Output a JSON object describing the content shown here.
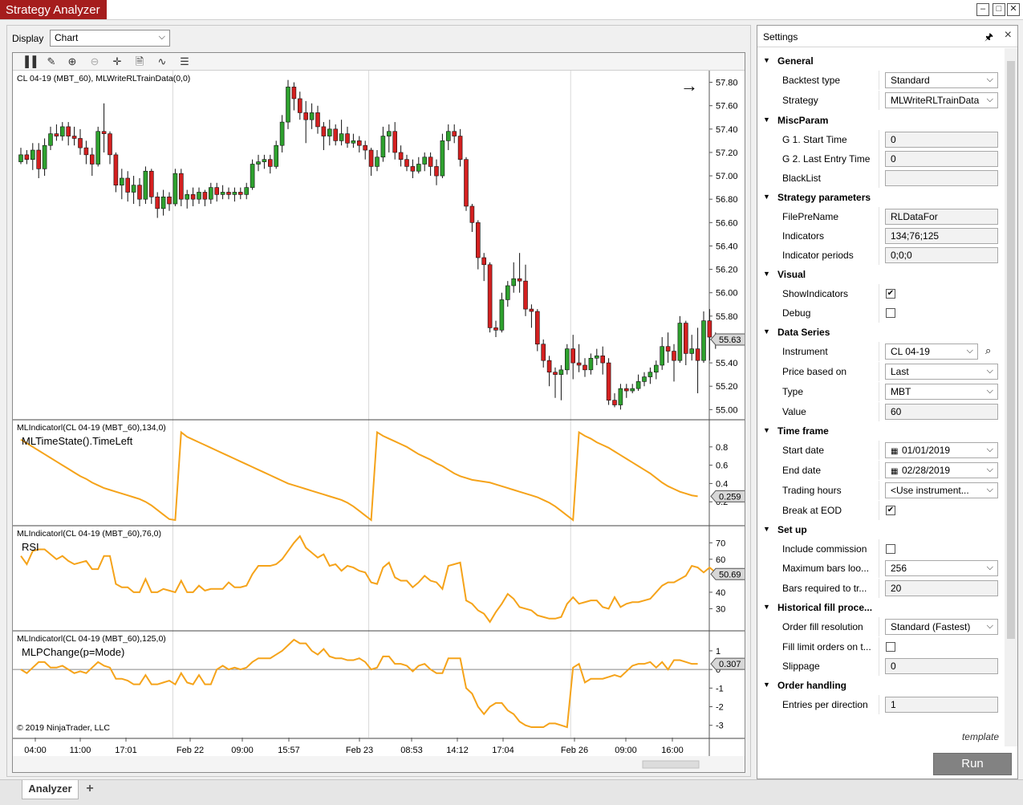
{
  "window": {
    "title": "Strategy Analyzer"
  },
  "display": {
    "label": "Display",
    "value": "Chart"
  },
  "chart": {
    "main_label": "CL 04-19 (MBT_60), MLWriteRLTrainData(0,0)",
    "price_ticks": [
      "57.80",
      "57.60",
      "57.40",
      "57.20",
      "57.00",
      "56.80",
      "56.60",
      "56.40",
      "56.20",
      "56.00",
      "55.80",
      "55.60",
      "55.40",
      "55.20",
      "55.00"
    ],
    "price_marker": "55.63",
    "up_color": "#2ea12e",
    "down_color": "#d42020",
    "indicator_color": "#f5a31a",
    "candles": [
      [
        57.12,
        57.18,
        57.1,
        57.24
      ],
      [
        57.18,
        57.14,
        57.1,
        57.22
      ],
      [
        57.14,
        57.22,
        57.05,
        57.28
      ],
      [
        57.22,
        57.06,
        56.98,
        57.28
      ],
      [
        57.06,
        57.26,
        57.0,
        57.32
      ],
      [
        57.26,
        57.36,
        57.22,
        57.42
      ],
      [
        57.36,
        57.34,
        57.3,
        57.44
      ],
      [
        57.34,
        57.42,
        57.3,
        57.46
      ],
      [
        57.42,
        57.34,
        57.26,
        57.46
      ],
      [
        57.34,
        57.32,
        57.26,
        57.42
      ],
      [
        57.32,
        57.24,
        57.18,
        57.4
      ],
      [
        57.24,
        57.18,
        57.1,
        57.3
      ],
      [
        57.18,
        57.1,
        57.0,
        57.24
      ],
      [
        57.1,
        57.38,
        57.08,
        57.42
      ],
      [
        57.38,
        57.36,
        57.2,
        57.62
      ],
      [
        57.36,
        57.18,
        57.1,
        57.38
      ],
      [
        57.18,
        56.92,
        56.86,
        57.2
      ],
      [
        56.92,
        56.98,
        56.8,
        57.06
      ],
      [
        56.98,
        56.86,
        56.78,
        57.04
      ],
      [
        56.86,
        56.92,
        56.76,
        57.0
      ],
      [
        56.92,
        56.8,
        56.74,
        56.98
      ],
      [
        56.8,
        57.04,
        56.76,
        57.08
      ],
      [
        57.04,
        56.82,
        56.76,
        57.06
      ],
      [
        56.82,
        56.72,
        56.64,
        56.86
      ],
      [
        56.72,
        56.82,
        56.66,
        56.88
      ],
      [
        56.82,
        56.76,
        56.7,
        56.86
      ],
      [
        56.76,
        57.02,
        56.74,
        57.06
      ],
      [
        57.02,
        56.8,
        56.74,
        57.06
      ],
      [
        56.8,
        56.84,
        56.72,
        56.88
      ],
      [
        56.84,
        56.8,
        56.74,
        56.9
      ],
      [
        56.8,
        56.86,
        56.76,
        56.9
      ],
      [
        56.86,
        56.8,
        56.74,
        56.88
      ],
      [
        56.8,
        56.9,
        56.76,
        56.94
      ],
      [
        56.9,
        56.84,
        56.78,
        56.94
      ],
      [
        56.84,
        56.86,
        56.8,
        56.92
      ],
      [
        56.86,
        56.84,
        56.8,
        56.9
      ],
      [
        56.84,
        56.86,
        56.78,
        56.9
      ],
      [
        56.86,
        56.84,
        56.8,
        56.9
      ],
      [
        56.84,
        56.9,
        56.8,
        56.94
      ],
      [
        56.9,
        57.1,
        56.88,
        57.14
      ],
      [
        57.1,
        57.12,
        57.04,
        57.18
      ],
      [
        57.12,
        57.14,
        57.06,
        57.18
      ],
      [
        57.14,
        57.08,
        57.02,
        57.18
      ],
      [
        57.08,
        57.26,
        57.06,
        57.3
      ],
      [
        57.26,
        57.46,
        57.2,
        57.52
      ],
      [
        57.46,
        57.76,
        57.4,
        57.82
      ],
      [
        57.76,
        57.66,
        57.56,
        57.8
      ],
      [
        57.66,
        57.54,
        57.48,
        57.72
      ],
      [
        57.54,
        57.48,
        57.28,
        57.64
      ],
      [
        57.48,
        57.54,
        57.4,
        57.62
      ],
      [
        57.54,
        57.42,
        57.36,
        57.6
      ],
      [
        57.42,
        57.34,
        57.22,
        57.46
      ],
      [
        57.34,
        57.4,
        57.26,
        57.48
      ],
      [
        57.4,
        57.3,
        57.26,
        57.44
      ],
      [
        57.3,
        57.36,
        57.26,
        57.48
      ],
      [
        57.36,
        57.28,
        57.24,
        57.42
      ],
      [
        57.28,
        57.3,
        57.24,
        57.36
      ],
      [
        57.3,
        57.26,
        57.2,
        57.34
      ],
      [
        57.26,
        57.22,
        57.14,
        57.3
      ],
      [
        57.22,
        57.08,
        57.0,
        57.24
      ],
      [
        57.08,
        57.16,
        57.04,
        57.22
      ],
      [
        57.16,
        57.34,
        57.12,
        57.42
      ],
      [
        57.34,
        57.38,
        57.2,
        57.44
      ],
      [
        57.38,
        57.2,
        57.14,
        57.46
      ],
      [
        57.2,
        57.14,
        57.08,
        57.26
      ],
      [
        57.14,
        57.08,
        57.04,
        57.18
      ],
      [
        57.08,
        57.04,
        56.98,
        57.14
      ],
      [
        57.04,
        57.1,
        57.02,
        57.16
      ],
      [
        57.1,
        57.16,
        57.04,
        57.2
      ],
      [
        57.16,
        57.08,
        57.0,
        57.2
      ],
      [
        57.08,
        57.0,
        56.92,
        57.14
      ],
      [
        57.0,
        57.3,
        56.98,
        57.36
      ],
      [
        57.3,
        57.38,
        57.22,
        57.44
      ],
      [
        57.38,
        57.34,
        57.28,
        57.44
      ],
      [
        57.34,
        57.14,
        57.08,
        57.4
      ],
      [
        57.14,
        56.74,
        56.7,
        57.16
      ],
      [
        56.74,
        56.6,
        56.52,
        56.76
      ],
      [
        56.6,
        56.3,
        56.2,
        56.62
      ],
      [
        56.3,
        56.24,
        56.1,
        56.34
      ],
      [
        56.24,
        55.7,
        55.66,
        56.26
      ],
      [
        55.7,
        55.68,
        55.62,
        55.76
      ],
      [
        55.68,
        55.94,
        55.66,
        56.0
      ],
      [
        55.94,
        56.06,
        55.88,
        56.1
      ],
      [
        56.06,
        56.12,
        56.0,
        56.26
      ],
      [
        56.12,
        56.1,
        56.0,
        56.34
      ],
      [
        56.1,
        55.86,
        55.8,
        56.24
      ],
      [
        55.86,
        55.84,
        55.7,
        55.9
      ],
      [
        55.84,
        55.56,
        55.5,
        55.86
      ],
      [
        55.56,
        55.42,
        55.36,
        55.6
      ],
      [
        55.42,
        55.32,
        55.2,
        55.46
      ],
      [
        55.32,
        55.3,
        55.1,
        55.36
      ],
      [
        55.3,
        55.34,
        55.08,
        55.38
      ],
      [
        55.34,
        55.52,
        55.3,
        55.56
      ],
      [
        55.52,
        55.4,
        55.26,
        55.64
      ],
      [
        55.4,
        55.38,
        55.32,
        55.56
      ],
      [
        55.38,
        55.34,
        55.28,
        55.44
      ],
      [
        55.34,
        55.44,
        55.3,
        55.48
      ],
      [
        55.44,
        55.46,
        55.38,
        55.52
      ],
      [
        55.46,
        55.4,
        55.3,
        55.54
      ],
      [
        55.4,
        55.08,
        55.04,
        55.44
      ],
      [
        55.08,
        55.04,
        55.02,
        55.14
      ],
      [
        55.04,
        55.18,
        55.0,
        55.22
      ],
      [
        55.18,
        55.16,
        55.1,
        55.22
      ],
      [
        55.16,
        55.18,
        55.14,
        55.22
      ],
      [
        55.18,
        55.24,
        55.16,
        55.3
      ],
      [
        55.24,
        55.28,
        55.2,
        55.32
      ],
      [
        55.28,
        55.32,
        55.22,
        55.36
      ],
      [
        55.32,
        55.38,
        55.26,
        55.42
      ],
      [
        55.38,
        55.54,
        55.34,
        55.62
      ],
      [
        55.54,
        55.5,
        55.4,
        55.66
      ],
      [
        55.5,
        55.42,
        55.24,
        55.56
      ],
      [
        55.42,
        55.74,
        55.4,
        55.8
      ],
      [
        55.74,
        55.48,
        55.38,
        55.76
      ],
      [
        55.48,
        55.52,
        55.42,
        55.64
      ],
      [
        55.52,
        55.42,
        55.14,
        55.7
      ],
      [
        55.42,
        55.76,
        55.4,
        55.84
      ],
      [
        55.76,
        55.62,
        55.42,
        55.86
      ],
      [
        55.62,
        55.6,
        55.52,
        55.66
      ]
    ],
    "panels": [
      {
        "header": "MLIndicatorl(CL 04-19 (MBT_60),134,0)",
        "name": "MLTimeState().TimeLeft",
        "ticks": [
          "0.8",
          "0.6",
          "0.4",
          "0.2"
        ],
        "marker": "0.259",
        "min": 0,
        "max": 1,
        "values": [
          0.88,
          0.84,
          0.8,
          0.76,
          0.72,
          0.68,
          0.64,
          0.6,
          0.56,
          0.52,
          0.48,
          0.45,
          0.41,
          0.38,
          0.35,
          0.33,
          0.31,
          0.29,
          0.27,
          0.25,
          0.23,
          0.2,
          0.16,
          0.11,
          0.06,
          0.01,
          0.0,
          0.96,
          0.91,
          0.88,
          0.85,
          0.82,
          0.79,
          0.76,
          0.73,
          0.7,
          0.67,
          0.64,
          0.61,
          0.58,
          0.55,
          0.52,
          0.49,
          0.46,
          0.43,
          0.4,
          0.38,
          0.36,
          0.34,
          0.32,
          0.3,
          0.28,
          0.26,
          0.24,
          0.22,
          0.19,
          0.15,
          0.1,
          0.05,
          0.0,
          0.96,
          0.92,
          0.89,
          0.86,
          0.83,
          0.8,
          0.76,
          0.72,
          0.69,
          0.66,
          0.62,
          0.59,
          0.55,
          0.51,
          0.48,
          0.46,
          0.44,
          0.43,
          0.42,
          0.41,
          0.39,
          0.37,
          0.35,
          0.33,
          0.31,
          0.29,
          0.27,
          0.25,
          0.22,
          0.19,
          0.15,
          0.1,
          0.05,
          0.0,
          0.96,
          0.92,
          0.89,
          0.85,
          0.82,
          0.79,
          0.75,
          0.71,
          0.67,
          0.63,
          0.59,
          0.55,
          0.51,
          0.46,
          0.41,
          0.37,
          0.34,
          0.31,
          0.29,
          0.27,
          0.26
        ]
      },
      {
        "header": "MLIndicatorl(CL 04-19 (MBT_60),76,0)",
        "name": "RSI",
        "ticks": [
          "70",
          "60",
          "40",
          "30"
        ],
        "marker": "50.69",
        "min": 20,
        "max": 75,
        "values": [
          62,
          57,
          65,
          66,
          66,
          63,
          60,
          62,
          59,
          57,
          58,
          59,
          54,
          54,
          62,
          62,
          45,
          43,
          43,
          40,
          40,
          48,
          40,
          40,
          42,
          41,
          40,
          47,
          40,
          40,
          44,
          41,
          42,
          42,
          42,
          46,
          43,
          43,
          44,
          51,
          56,
          56,
          56,
          57,
          60,
          65,
          70,
          74,
          67,
          64,
          61,
          63,
          56,
          57,
          53,
          56,
          55,
          53,
          52,
          46,
          45,
          55,
          58,
          49,
          47,
          47,
          43,
          46,
          50,
          47,
          46,
          42,
          56,
          57,
          58,
          35,
          33,
          29,
          27,
          22,
          28,
          33,
          39,
          36,
          31,
          30,
          29,
          26,
          25,
          24,
          24,
          25,
          33,
          37,
          33,
          34,
          35,
          35,
          31,
          30,
          37,
          31,
          33,
          34,
          34,
          35,
          36,
          40,
          44,
          46,
          46,
          48,
          50,
          56,
          55,
          52,
          55,
          52,
          51
        ]
      },
      {
        "header": "MLIndicatorl(CL 04-19 (MBT_60),125,0)",
        "name": "MLPChange(p=Mode)",
        "ticks": [
          "1",
          "0",
          "-1",
          "-2",
          "-3"
        ],
        "marker": "0.307",
        "min": -3.4,
        "max": 1.6,
        "values": [
          0.0,
          -0.2,
          0.1,
          0.4,
          0.4,
          0.1,
          0.1,
          0.2,
          0.0,
          -0.2,
          -0.1,
          -0.2,
          0.1,
          0.4,
          0.2,
          0.1,
          -0.5,
          -0.5,
          -0.6,
          -0.8,
          -0.8,
          -0.3,
          -0.8,
          -0.8,
          -0.7,
          -0.6,
          -0.8,
          -0.2,
          -0.7,
          -0.8,
          -0.3,
          -0.8,
          -0.8,
          0.0,
          0.2,
          0.0,
          0.1,
          0.0,
          0.1,
          0.4,
          0.6,
          0.6,
          0.6,
          0.8,
          1.0,
          1.3,
          1.6,
          1.4,
          1.4,
          1.0,
          0.8,
          1.1,
          0.7,
          0.6,
          0.6,
          0.5,
          0.5,
          0.6,
          0.4,
          0.0,
          0.1,
          0.7,
          0.7,
          0.3,
          0.3,
          0.2,
          -0.1,
          0.2,
          0.3,
          0.0,
          -0.2,
          -0.2,
          0.6,
          0.6,
          0.6,
          -1.0,
          -1.3,
          -2.0,
          -2.4,
          -2.0,
          -1.8,
          -1.8,
          -2.2,
          -2.4,
          -2.8,
          -3.0,
          -3.1,
          -3.1,
          -3.1,
          -2.9,
          -2.9,
          -3.0,
          -3.1,
          0.1,
          0.3,
          -0.7,
          -0.5,
          -0.5,
          -0.5,
          -0.4,
          -0.3,
          -0.4,
          -0.1,
          0.2,
          0.3,
          0.3,
          0.4,
          0.1,
          0.4,
          0.0,
          0.5,
          0.5,
          0.4,
          0.3,
          0.3
        ]
      }
    ],
    "x_ticks": [
      "04:00",
      "11:00",
      "17:01",
      "Feb 22",
      "09:00",
      "15:57",
      "Feb 23",
      "08:53",
      "14:12",
      "17:04",
      "Feb 26",
      "09:00",
      "16:00"
    ],
    "day_breaks": [
      26,
      59,
      93
    ],
    "copyright": "© 2019 NinjaTrader, LLC"
  },
  "settings": {
    "title": "Settings",
    "rows": [
      {
        "type": "cat",
        "label": "General"
      },
      {
        "type": "select",
        "label": "Backtest type",
        "value": "Standard"
      },
      {
        "type": "select",
        "label": "Strategy",
        "value": "MLWriteRLTrainData"
      },
      {
        "type": "cat",
        "label": "MiscParam"
      },
      {
        "type": "text",
        "label": "G 1. Start Time",
        "value": "0"
      },
      {
        "type": "text",
        "label": "G 2. Last Entry Time",
        "value": "0"
      },
      {
        "type": "text",
        "label": "BlackList",
        "value": ""
      },
      {
        "type": "cat",
        "label": "Strategy parameters"
      },
      {
        "type": "text",
        "label": "FilePreName",
        "value": "RLDataFor"
      },
      {
        "type": "text",
        "label": "Indicators",
        "value": "134;76;125"
      },
      {
        "type": "text",
        "label": "Indicator periods",
        "value": "0;0;0"
      },
      {
        "type": "cat",
        "label": "Visual"
      },
      {
        "type": "check",
        "label": "ShowIndicators",
        "value": true
      },
      {
        "type": "check",
        "label": "Debug",
        "value": false
      },
      {
        "type": "cat",
        "label": "Data Series"
      },
      {
        "type": "instrument",
        "label": "Instrument",
        "value": "CL 04-19"
      },
      {
        "type": "select",
        "label": "Price based on",
        "value": "Last"
      },
      {
        "type": "select",
        "label": "Type",
        "value": "MBT"
      },
      {
        "type": "text",
        "label": "Value",
        "value": "60"
      },
      {
        "type": "cat",
        "label": "Time frame"
      },
      {
        "type": "date",
        "label": "Start date",
        "value": "01/01/2019"
      },
      {
        "type": "date",
        "label": "End date",
        "value": "02/28/2019"
      },
      {
        "type": "select",
        "label": "Trading hours",
        "value": "<Use instrument..."
      },
      {
        "type": "check",
        "label": "Break at EOD",
        "value": true
      },
      {
        "type": "cat",
        "label": "Set up"
      },
      {
        "type": "check",
        "label": "Include commission",
        "value": false
      },
      {
        "type": "select",
        "label": "Maximum bars loo...",
        "value": "256"
      },
      {
        "type": "text",
        "label": "Bars required to tr...",
        "value": "20"
      },
      {
        "type": "cat",
        "label": "Historical fill proce..."
      },
      {
        "type": "select",
        "label": "Order fill resolution",
        "value": "Standard (Fastest)"
      },
      {
        "type": "check",
        "label": "Fill limit orders on t...",
        "value": false
      },
      {
        "type": "text",
        "label": "Slippage",
        "value": "0"
      },
      {
        "type": "cat",
        "label": "Order handling"
      },
      {
        "type": "text",
        "label": "Entries per direction",
        "value": "1"
      }
    ],
    "template_link": "template",
    "run_label": "Run"
  },
  "tabs": {
    "active": "Analyzer",
    "add": "+"
  }
}
